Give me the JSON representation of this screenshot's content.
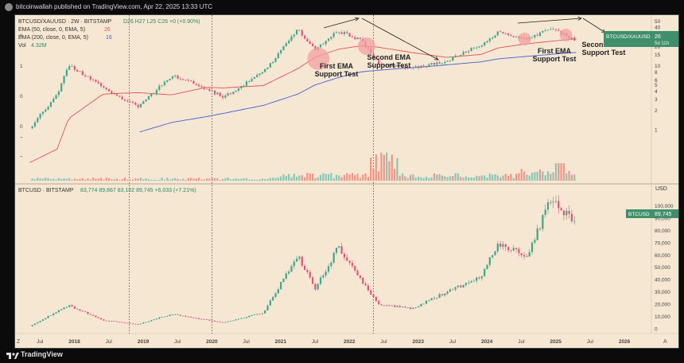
{
  "header": {
    "published": "bitcoinwallah published on TradingView.com, Apr 22, 2025 13:33 UTC"
  },
  "footer": {
    "brand": "TradingView"
  },
  "colors": {
    "background": "#f6e7d3",
    "up": "#3fa68a",
    "down": "#e0557a",
    "ema50": "#e05050",
    "ema200": "#4060d0",
    "vol_up": "#7cc3b4",
    "vol_down": "#f08c80",
    "label_bg": "#3f8f6a",
    "circle": "#f3a0a0",
    "text": "#333333"
  },
  "top_pane": {
    "legend": {
      "symbol": "BTCUSD/XAUUSD · 2W · BITSTAMP",
      "ohlc": "D26  H27  L25  C26  +0 (+0.90%)",
      "ema50_label": "EMA (50, close, 0, EMA, 5)",
      "ema50_value": "26",
      "ema200_label": "EMA (200, close, 0, EMA, 5)",
      "ema200_value": "16",
      "vol_label": "Vol",
      "vol_value": "4.32M"
    },
    "right_axis": [
      "50",
      "40",
      "30",
      "20",
      "15",
      "10",
      "8",
      "6",
      "5",
      "4",
      "3",
      "2",
      "1"
    ],
    "left_axis": [
      "1",
      "1",
      "0",
      "0",
      "−",
      "−"
    ],
    "price_label": "BTCUSD/XAUUSD",
    "price_value": "26",
    "price_sub": "5d 11h",
    "annotations": [
      "First EMA\nSupport Test",
      "Second EMA\nSupport Test",
      "First EMA\nSupport Test",
      "Second EMA\nSupport Test"
    ]
  },
  "bottom_pane": {
    "legend": {
      "symbol": "BTCUSD · BITSTAMP",
      "values": "83,774  89,867  83,102  89,745  +6,033 (+7.21%)"
    },
    "currency": "USD",
    "right_axis": [
      "100,000",
      "90,000",
      "80,000",
      "70,000",
      "60,000",
      "50,000",
      "40,000",
      "30,000",
      "20,000",
      "10,000",
      "0"
    ],
    "price_label": "BTCUSD",
    "price_value": "89,745"
  },
  "time_axis": [
    "Jul",
    "2018",
    "Jul",
    "2019",
    "Jul",
    "2020",
    "Jul",
    "2021",
    "Jul",
    "2022",
    "Jul",
    "2023",
    "Jul",
    "2024",
    "Jul",
    "2025",
    "Jul",
    "2026"
  ],
  "chart_data": [
    {
      "type": "line",
      "title": "BTCUSD/XAUUSD · 2W · BITSTAMP",
      "scale": "log",
      "x": [
        "2017-05",
        "2017-10",
        "2017-12",
        "2018-06",
        "2018-12",
        "2019-06",
        "2019-12",
        "2020-03",
        "2020-10",
        "2021-04",
        "2021-07",
        "2021-11",
        "2022-03",
        "2022-06",
        "2022-12",
        "2023-06",
        "2023-12",
        "2024-03",
        "2024-08",
        "2024-12",
        "2025-04"
      ],
      "series": [
        {
          "name": "BTCUSD/XAUUSD",
          "values": [
            1.0,
            3.5,
            10.5,
            4.5,
            2.3,
            7.0,
            4.5,
            3.2,
            8.0,
            36.0,
            18.0,
            35.0,
            25.0,
            11.0,
            9.0,
            12.0,
            21.0,
            33.0,
            25.0,
            40.0,
            26.0
          ]
        },
        {
          "name": "EMA (50, close, 0, EMA, 5)",
          "values": [
            0.3,
            0.5,
            1.5,
            3.6,
            3.8,
            3.5,
            4.6,
            4.5,
            4.9,
            9.0,
            13.5,
            18.0,
            20.5,
            19.5,
            16.0,
            13.5,
            15.0,
            19.0,
            22.0,
            24.0,
            26.0
          ]
        },
        {
          "name": "EMA (200, close, 0, EMA, 5)",
          "values": [
            null,
            null,
            null,
            null,
            0.9,
            1.3,
            1.6,
            1.8,
            2.4,
            3.6,
            5.0,
            6.5,
            8.0,
            8.5,
            9.3,
            10.3,
            11.5,
            12.8,
            14.0,
            15.0,
            16.0
          ]
        }
      ],
      "yticks": [
        1,
        2,
        3,
        4,
        5,
        6,
        8,
        10,
        15,
        20,
        30,
        40,
        50
      ],
      "last_value": 26
    },
    {
      "type": "line",
      "title": "BTCUSD · BITSTAMP",
      "x": [
        "2017-05",
        "2017-12",
        "2018-06",
        "2018-12",
        "2019-06",
        "2019-12",
        "2020-03",
        "2020-10",
        "2021-04",
        "2021-07",
        "2021-11",
        "2022-06",
        "2022-12",
        "2023-06",
        "2023-12",
        "2024-03",
        "2024-08",
        "2024-12",
        "2025-04"
      ],
      "values": [
        1500,
        19000,
        7000,
        3500,
        12000,
        7200,
        5000,
        13000,
        60000,
        32000,
        66000,
        20000,
        16500,
        30000,
        42000,
        70000,
        58000,
        104000,
        89745
      ],
      "ylim": [
        0,
        110000
      ],
      "yticks": [
        0,
        10000,
        20000,
        30000,
        40000,
        50000,
        60000,
        70000,
        80000,
        90000,
        100000
      ],
      "last_value": 89745
    }
  ]
}
